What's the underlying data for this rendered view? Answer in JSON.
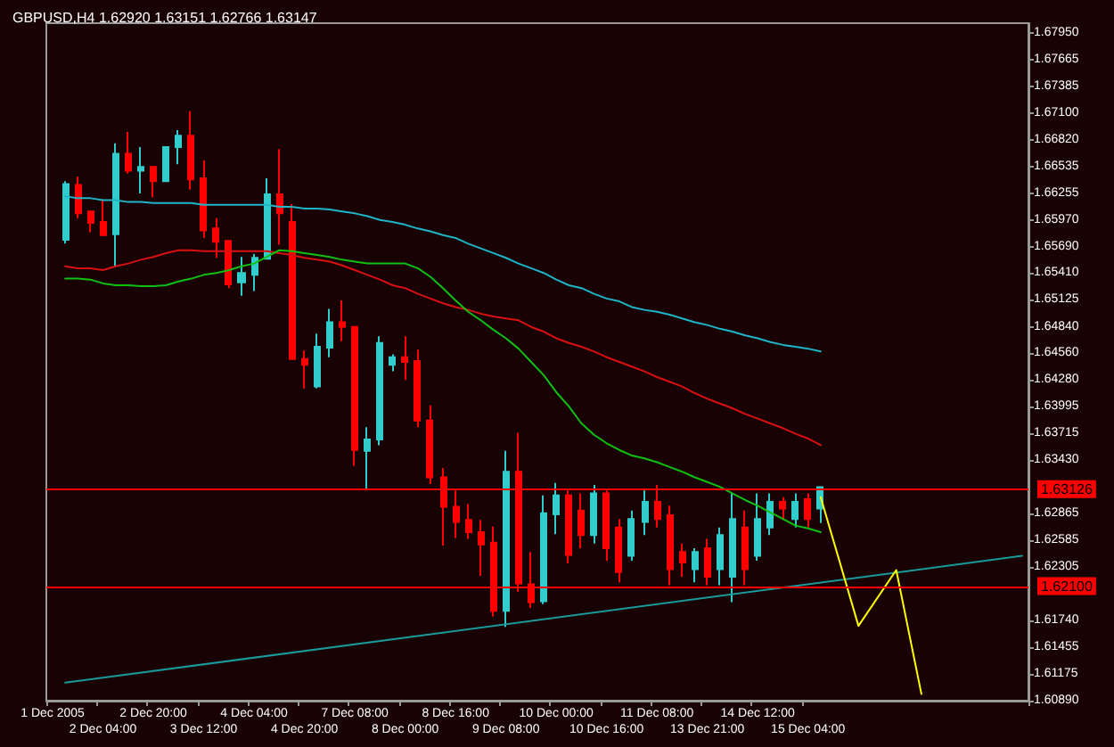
{
  "chart_data": {
    "type": "candlestick",
    "title": "GBPUSD,H4 1.62920 1.63151 1.62766 1.63147",
    "categories": [
      "1 Dec 2005",
      null,
      null,
      null,
      "2 Dec 04:00",
      null,
      null,
      null,
      "2 Dec 20:00",
      null,
      null,
      null,
      "3 Dec 12:00",
      null,
      null,
      null,
      "4 Dec 04:00",
      null,
      null,
      null,
      "4 Dec 20:00",
      null,
      null,
      null,
      "7 Dec 08:00",
      null,
      null,
      null,
      "8 Dec 00:00",
      null,
      null,
      null,
      "8 Dec 16:00",
      null,
      null,
      null,
      "9 Dec 08:00",
      null,
      null,
      null,
      "10 Dec 00:00",
      null,
      null,
      null,
      "10 Dec 16:00",
      null,
      null,
      null,
      "11 Dec 08:00",
      null,
      null,
      null,
      "13 Dec 21:00",
      null,
      null,
      null,
      "14 Dec 12:00",
      null,
      null,
      null,
      "15 Dec 04:00",
      null,
      null,
      null,
      null,
      null,
      null,
      null,
      null,
      null,
      null,
      null,
      null,
      null,
      null,
      null,
      null,
      null
    ],
    "ohlc": [
      null,
      [
        1.6576,
        1.6638,
        1.6572,
        1.6635
      ],
      [
        1.6634,
        1.6643,
        1.6599,
        1.6604
      ],
      [
        1.6606,
        1.6607,
        1.6584,
        1.6594
      ],
      [
        1.6595,
        1.6618,
        1.658,
        1.6581
      ],
      [
        1.6582,
        1.6678,
        1.6547,
        1.6667
      ],
      [
        1.6667,
        1.669,
        1.6646,
        1.6649
      ],
      [
        1.6649,
        1.6674,
        1.6625,
        1.6653
      ],
      [
        1.6653,
        1.6653,
        1.6621,
        1.6638
      ],
      [
        1.6638,
        1.6674,
        1.6638,
        1.6674
      ],
      [
        1.6674,
        1.6692,
        1.6656,
        1.6686
      ],
      [
        1.6686,
        1.6712,
        1.6629,
        1.664
      ],
      [
        1.6641,
        1.666,
        1.6578,
        1.6586
      ],
      [
        1.6588,
        1.6599,
        1.6557,
        1.6574
      ],
      [
        1.6575,
        1.6575,
        1.6525,
        1.6529
      ],
      [
        1.6531,
        1.6558,
        1.6517,
        1.6541
      ],
      [
        1.6539,
        1.6561,
        1.6522,
        1.6557
      ],
      [
        1.6556,
        1.6641,
        1.6555,
        1.6624
      ],
      [
        1.6624,
        1.6672,
        1.6571,
        1.6604
      ],
      [
        1.6595,
        1.6614,
        1.645,
        1.645
      ],
      [
        1.645,
        1.6459,
        1.6419,
        1.6444
      ],
      [
        1.6421,
        1.6477,
        1.6419,
        1.6463
      ],
      [
        1.6462,
        1.6503,
        1.6452,
        1.6489
      ],
      [
        1.6489,
        1.6512,
        1.6469,
        1.6484
      ],
      [
        1.6484,
        1.6484,
        1.6337,
        1.6354
      ],
      [
        1.6353,
        1.6378,
        1.6312,
        1.6365
      ],
      [
        1.6365,
        1.6474,
        1.6359,
        1.6467
      ],
      [
        1.6444,
        1.6455,
        1.6437,
        1.6452
      ],
      [
        1.6452,
        1.6474,
        1.6428,
        1.6447
      ],
      [
        1.6448,
        1.646,
        1.6378,
        1.6385
      ],
      [
        1.6385,
        1.6401,
        1.6318,
        1.6325
      ],
      [
        1.6325,
        1.6335,
        1.6253,
        1.6294
      ],
      [
        1.6294,
        1.6311,
        1.6261,
        1.6278
      ],
      [
        1.628,
        1.6297,
        1.626,
        1.6267
      ],
      [
        1.6267,
        1.628,
        1.6221,
        1.6254
      ],
      [
        1.6256,
        1.6273,
        1.6178,
        1.6184
      ],
      [
        1.6184,
        1.6353,
        1.6167,
        1.6331
      ],
      [
        1.6331,
        1.6372,
        1.6204,
        1.6213
      ],
      [
        1.6212,
        1.6246,
        1.6187,
        1.6193
      ],
      [
        1.6194,
        1.6306,
        1.6191,
        1.6287
      ],
      [
        1.6286,
        1.6319,
        1.6265,
        1.6306
      ],
      [
        1.6306,
        1.6311,
        1.6234,
        1.6243
      ],
      [
        1.629,
        1.6308,
        1.625,
        1.6264
      ],
      [
        1.6264,
        1.6317,
        1.6255,
        1.6308
      ],
      [
        1.6308,
        1.6311,
        1.6237,
        1.625
      ],
      [
        1.6272,
        1.6281,
        1.6214,
        1.6225
      ],
      [
        1.6242,
        1.629,
        1.6237,
        1.6281
      ],
      [
        1.6278,
        1.6311,
        1.6264,
        1.6299
      ],
      [
        1.6299,
        1.6317,
        1.6272,
        1.6281
      ],
      [
        1.6285,
        1.6295,
        1.6211,
        1.6228
      ],
      [
        1.6246,
        1.6255,
        1.622,
        1.6235
      ],
      [
        1.6228,
        1.625,
        1.6214,
        1.6246
      ],
      [
        1.625,
        1.626,
        1.6211,
        1.622
      ],
      [
        1.6228,
        1.6272,
        1.6211,
        1.6264
      ],
      [
        1.622,
        1.6308,
        1.6193,
        1.6281
      ],
      [
        1.6272,
        1.629,
        1.6211,
        1.6228
      ],
      [
        1.6242,
        1.6308,
        1.6237,
        1.6281
      ],
      [
        1.6272,
        1.6308,
        1.6264,
        1.6299
      ],
      [
        1.6299,
        1.6304,
        1.6281,
        1.6292
      ],
      [
        1.6281,
        1.6308,
        1.6272,
        1.6299
      ],
      [
        1.6302,
        1.6308,
        1.6272,
        1.6281
      ],
      [
        1.6292,
        1.63151,
        1.62766,
        1.63147
      ],
      null,
      null,
      null,
      null,
      null,
      null,
      null,
      null,
      null,
      null,
      null,
      null,
      null,
      null,
      null,
      null
    ],
    "colors": [
      null,
      "#33cccc",
      "#ff0000",
      "#ff0000",
      "#ff0000",
      "#33cccc",
      "#ff0000",
      "#33cccc",
      "#ff0000",
      "#33cccc",
      "#33cccc",
      "#ff0000",
      "#ff0000",
      "#ff0000",
      "#ff0000",
      "#33cccc",
      "#33cccc",
      "#33cccc",
      "#ff0000",
      "#ff0000",
      "#ff0000",
      "#33cccc",
      "#33cccc",
      "#ff0000",
      "#ff0000",
      "#33cccc",
      "#33cccc",
      "#33cccc",
      "#ff0000",
      "#ff0000",
      "#ff0000",
      "#ff0000",
      "#ff0000",
      "#ff0000",
      "#ff0000",
      "#ff0000",
      "#33cccc",
      "#ff0000",
      "#ff0000",
      "#33cccc",
      "#33cccc",
      "#ff0000",
      "#ff0000",
      "#33cccc",
      "#ff0000",
      "#ff0000",
      "#33cccc",
      "#33cccc",
      "#ff0000",
      "#ff0000",
      "#ff0000",
      "#33cccc",
      "#ff0000",
      "#33cccc",
      "#33cccc",
      "#ff0000",
      "#33cccc",
      "#33cccc",
      "#ff0000",
      "#33cccc",
      "#ff0000",
      "#33cccc",
      null,
      null,
      null,
      null,
      null,
      null,
      null,
      null,
      null,
      null,
      null,
      null,
      null,
      null,
      null,
      null
    ],
    "series": [
      {
        "type": "line",
        "color": "#1fb5c8",
        "values": [
          null,
          1.6622,
          1.662,
          1.662,
          1.6618,
          1.6618,
          1.6616,
          1.6616,
          1.6615,
          1.6615,
          1.6615,
          1.6615,
          1.6613,
          1.6613,
          1.6613,
          1.6613,
          1.6613,
          1.6613,
          1.6611,
          1.6611,
          1.6609,
          1.6609,
          1.6608,
          1.6606,
          1.6604,
          1.6601,
          1.6597,
          1.6595,
          1.6592,
          1.6588,
          1.6585,
          1.6581,
          1.6578,
          1.6572,
          1.6567,
          1.6562,
          1.6557,
          1.6551,
          1.6546,
          1.6541,
          1.6534,
          1.6528,
          1.6525,
          1.6519,
          1.6514,
          1.6511,
          1.6505,
          1.6502,
          1.65,
          1.6497,
          1.6493,
          1.6489,
          1.6486,
          1.6482,
          1.6479,
          1.6475,
          1.6472,
          1.6468,
          1.6465,
          1.6463,
          1.6461,
          1.6458,
          null,
          null,
          null,
          null,
          null,
          null,
          null,
          null,
          null,
          null,
          null,
          null,
          null,
          null,
          null,
          null
        ]
      },
      {
        "type": "line",
        "color": "#d81010",
        "values": [
          null,
          1.6548,
          1.6546,
          1.6546,
          1.6544,
          1.6548,
          1.6551,
          1.6555,
          1.6558,
          1.6562,
          1.6565,
          1.6565,
          1.6564,
          1.6564,
          1.6564,
          1.6564,
          1.6564,
          1.6564,
          1.6562,
          1.656,
          1.6557,
          1.6555,
          1.6553,
          1.6549,
          1.6544,
          1.6539,
          1.6534,
          1.6528,
          1.6525,
          1.6519,
          1.6514,
          1.6509,
          1.6505,
          1.6502,
          1.6498,
          1.6495,
          1.6493,
          1.6491,
          1.6484,
          1.6479,
          1.6472,
          1.6467,
          1.6463,
          1.6458,
          1.6452,
          1.6447,
          1.6442,
          1.6437,
          1.6431,
          1.6426,
          1.6421,
          1.6414,
          1.6408,
          1.6403,
          1.6398,
          1.6392,
          1.6387,
          1.6382,
          1.6377,
          1.6371,
          1.6366,
          1.6359,
          null,
          null,
          null,
          null,
          null,
          null,
          null,
          null,
          null,
          null,
          null,
          null,
          null,
          null,
          null,
          null
        ]
      },
      {
        "type": "line",
        "color": "#10c010",
        "values": [
          null,
          1.6535,
          1.6535,
          1.6534,
          1.653,
          1.6528,
          1.6528,
          1.6527,
          1.6527,
          1.6528,
          1.6532,
          1.6535,
          1.6539,
          1.6541,
          1.6544,
          1.6548,
          1.6551,
          1.6558,
          1.6565,
          1.6564,
          1.6562,
          1.656,
          1.6558,
          1.6555,
          1.6553,
          1.6551,
          1.6551,
          1.6551,
          1.6551,
          1.6546,
          1.6537,
          1.6525,
          1.6512,
          1.65,
          1.6491,
          1.6481,
          1.6472,
          1.6461,
          1.6447,
          1.6433,
          1.6415,
          1.64,
          1.6382,
          1.637,
          1.6361,
          1.6354,
          1.6348,
          1.6345,
          1.6341,
          1.6336,
          1.6331,
          1.6325,
          1.632,
          1.6315,
          1.6308,
          1.6301,
          1.6295,
          1.6288,
          1.6281,
          1.6274,
          1.6271,
          1.6267,
          null,
          null,
          null,
          null,
          null,
          null,
          null,
          null,
          null,
          null,
          null,
          null,
          null,
          null,
          null,
          null
        ]
      },
      {
        "type": "line",
        "color": "#1a9a9a",
        "values": [
          null,
          1.6108,
          null,
          null,
          null,
          null,
          null,
          null,
          null,
          null,
          null,
          null,
          null,
          null,
          null,
          null,
          null,
          null,
          null,
          null,
          null,
          null,
          null,
          null,
          null,
          null,
          null,
          null,
          null,
          null,
          null,
          null,
          null,
          null,
          null,
          null,
          null,
          null,
          null,
          null,
          null,
          null,
          null,
          null,
          null,
          null,
          null,
          null,
          null,
          null,
          null,
          null,
          null,
          null,
          null,
          null,
          null,
          null,
          null,
          null,
          null,
          null,
          null,
          null,
          null,
          null,
          null,
          null,
          null,
          null,
          null,
          null,
          null,
          null,
          null,
          null,
          null,
          1.6242
        ]
      },
      {
        "type": "line",
        "color": "#ffff00",
        "values": [
          null,
          null,
          null,
          null,
          null,
          null,
          null,
          null,
          null,
          null,
          null,
          null,
          null,
          null,
          null,
          null,
          null,
          null,
          null,
          null,
          null,
          null,
          null,
          null,
          null,
          null,
          null,
          null,
          null,
          null,
          null,
          null,
          null,
          null,
          null,
          null,
          null,
          null,
          null,
          null,
          null,
          null,
          null,
          null,
          null,
          null,
          null,
          null,
          null,
          null,
          null,
          null,
          null,
          null,
          null,
          null,
          null,
          null,
          null,
          null,
          null,
          1.6304,
          null,
          null,
          1.6168,
          null,
          null,
          1.6227,
          null,
          1.6096,
          null,
          null,
          null,
          null,
          null,
          null,
          null,
          null
        ]
      }
    ],
    "marker": "none",
    "ylim": [
      1.6089,
      1.6805
    ],
    "yticks": [
      {
        "value": 1.6089,
        "label": "1.60890"
      },
      {
        "value": 1.61175,
        "label": "1.61175"
      },
      {
        "value": 1.61455,
        "label": "1.61455"
      },
      {
        "value": 1.6174,
        "label": "1.61740"
      },
      {
        "value": 1.62305,
        "label": "1.62305"
      },
      {
        "value": 1.62585,
        "label": "1.62585"
      },
      {
        "value": 1.62865,
        "label": "1.62865"
      },
      {
        "value": 1.6343,
        "label": "1.63430"
      },
      {
        "value": 1.63715,
        "label": "1.63715"
      },
      {
        "value": 1.63995,
        "label": "1.63995"
      },
      {
        "value": 1.6428,
        "label": "1.64280"
      },
      {
        "value": 1.6456,
        "label": "1.64560"
      },
      {
        "value": 1.6484,
        "label": "1.64840"
      },
      {
        "value": 1.65125,
        "label": "1.65125"
      },
      {
        "value": 1.6541,
        "label": "1.65410"
      },
      {
        "value": 1.6569,
        "label": "1.65690"
      },
      {
        "value": 1.6597,
        "label": "1.65970"
      },
      {
        "value": 1.66255,
        "label": "1.66255"
      },
      {
        "value": 1.66535,
        "label": "1.66535"
      },
      {
        "value": 1.6682,
        "label": "1.66820"
      },
      {
        "value": 1.671,
        "label": "1.67100"
      },
      {
        "value": 1.67385,
        "label": "1.67385"
      },
      {
        "value": 1.67665,
        "label": "1.67665"
      },
      {
        "value": 1.6795,
        "label": "1.67950"
      }
    ],
    "ref_lines": [
      {
        "axis": "y",
        "value": 1.63126,
        "label": "1.63126",
        "color": "#ff0000"
      },
      {
        "axis": "y",
        "value": 1.621,
        "label": "1.62100",
        "color": "#ff0000"
      }
    ]
  }
}
